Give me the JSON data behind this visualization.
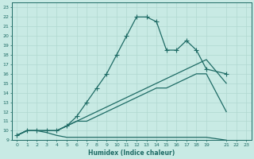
{
  "xlabel": "Humidex (Indice chaleur)",
  "bg_color": "#c8eae4",
  "line_color": "#1e6b65",
  "grid_color": "#b0d8d0",
  "xlim": [
    -0.5,
    23.5
  ],
  "ylim": [
    9,
    23.5
  ],
  "xtick_vals": [
    0,
    1,
    2,
    3,
    4,
    5,
    6,
    7,
    8,
    9,
    10,
    11,
    12,
    13,
    14,
    15,
    16,
    17,
    18,
    19,
    21,
    22,
    23
  ],
  "ytick_vals": [
    9,
    10,
    11,
    12,
    13,
    14,
    15,
    16,
    17,
    18,
    19,
    20,
    21,
    22,
    23
  ],
  "line1_x": [
    0,
    1,
    2,
    3,
    4,
    5,
    6,
    7,
    8,
    9,
    10,
    11,
    12,
    13,
    14,
    15,
    16,
    17,
    18,
    19,
    21
  ],
  "line1_y": [
    9.5,
    10,
    10,
    10,
    10,
    10.5,
    11.5,
    13,
    14.5,
    16,
    18,
    20,
    22,
    22,
    21.5,
    18.5,
    18.5,
    19.5,
    18.5,
    16.5,
    16
  ],
  "line2_x": [
    0,
    1,
    2,
    3,
    4,
    5,
    6,
    7,
    8,
    9,
    10,
    11,
    12,
    13,
    14,
    15,
    16,
    17,
    18,
    19,
    21
  ],
  "line2_y": [
    9.5,
    10,
    10,
    10,
    10,
    10.5,
    11,
    11.5,
    12,
    12.5,
    13,
    13.5,
    14,
    14.5,
    15,
    15.5,
    16,
    16.5,
    17,
    17.5,
    15
  ],
  "line3_x": [
    0,
    1,
    2,
    3,
    4,
    5,
    6,
    7,
    8,
    9,
    10,
    11,
    12,
    13,
    14,
    15,
    16,
    17,
    18,
    19,
    21
  ],
  "line3_y": [
    9.5,
    10,
    10,
    10,
    10,
    10.5,
    11,
    11,
    11.5,
    12,
    12.5,
    13,
    13.5,
    14,
    14.5,
    14.5,
    15,
    15.5,
    16,
    16,
    12
  ],
  "line4_x": [
    0,
    1,
    2,
    3,
    4,
    5,
    6,
    7,
    8,
    9,
    10,
    11,
    12,
    13,
    14,
    15,
    16,
    17,
    18,
    19,
    21
  ],
  "line4_y": [
    9.5,
    10,
    10,
    9.8,
    9.5,
    9.3,
    9.3,
    9.3,
    9.3,
    9.3,
    9.3,
    9.3,
    9.3,
    9.3,
    9.3,
    9.3,
    9.3,
    9.3,
    9.3,
    9.3,
    9.0
  ],
  "marker_style": "+",
  "marker_size": 4,
  "linewidth": 0.9,
  "tick_fontsize": 4.5,
  "xlabel_fontsize": 5.5
}
